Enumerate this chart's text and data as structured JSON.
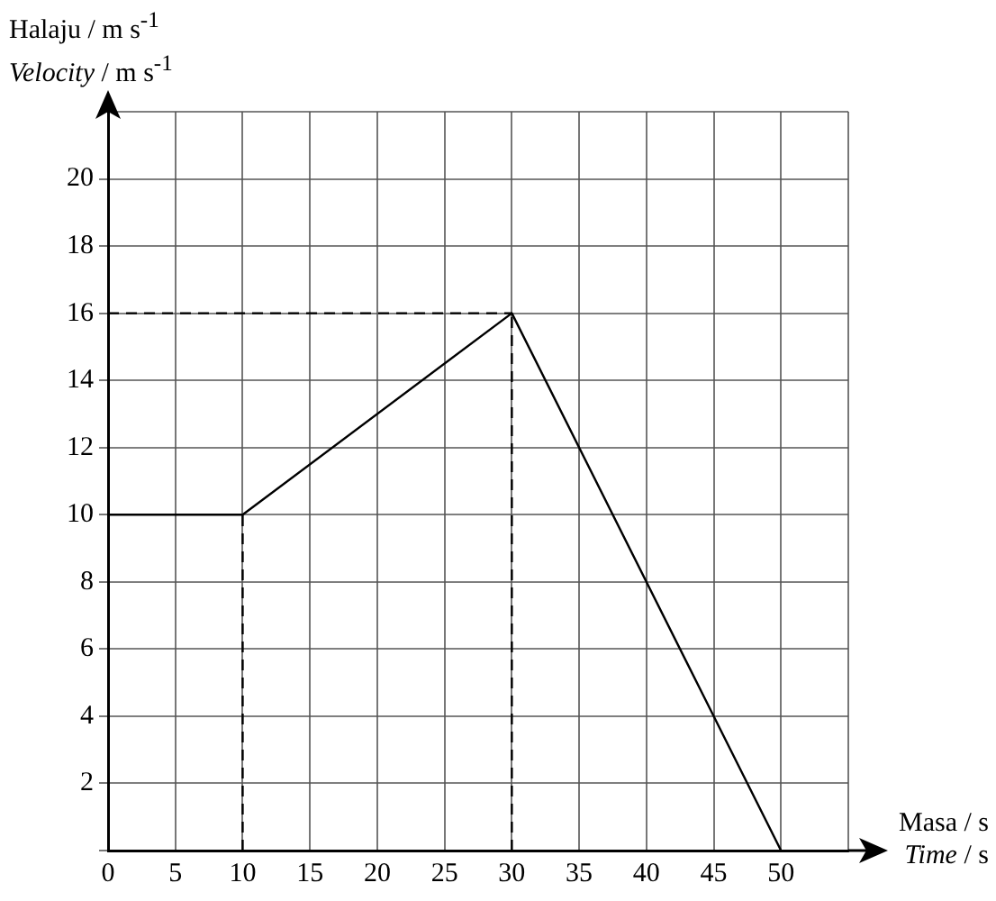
{
  "chart_data": {
    "type": "line",
    "xlabel": "Masa / s\nTime / s",
    "ylabel": "Halaju / m s$^{-1}$\nVelocity / m s$^{-1}$",
    "xlim": [
      0,
      55
    ],
    "ylim": [
      0,
      22
    ],
    "xticks": [
      0,
      5,
      10,
      15,
      20,
      25,
      30,
      35,
      40,
      45,
      50,
      {
        "value": 55,
        "label": null
      }
    ],
    "yticks": [
      {
        "value": 0,
        "label": null
      },
      2,
      4,
      6,
      8,
      10,
      12,
      14,
      16,
      18,
      20,
      {
        "value": 22,
        "label": null
      }
    ],
    "grid": true,
    "marker": "none",
    "series": [
      {
        "color": "#000000",
        "x": [
          0,
          10,
          30,
          50
        ],
        "values": [
          10,
          10,
          16,
          0
        ],
        "line_style": "solid"
      },
      {
        "color": "#000000",
        "x": [
          10,
          10
        ],
        "values": [
          0,
          10
        ],
        "line_style": "dashed"
      },
      {
        "color": "#000000",
        "x": [
          0,
          30
        ],
        "values": [
          16,
          16
        ],
        "line_style": "dashed"
      },
      {
        "color": "#000000",
        "x": [
          30,
          30
        ],
        "values": [
          0,
          16
        ],
        "line_style": "dashed"
      }
    ]
  }
}
